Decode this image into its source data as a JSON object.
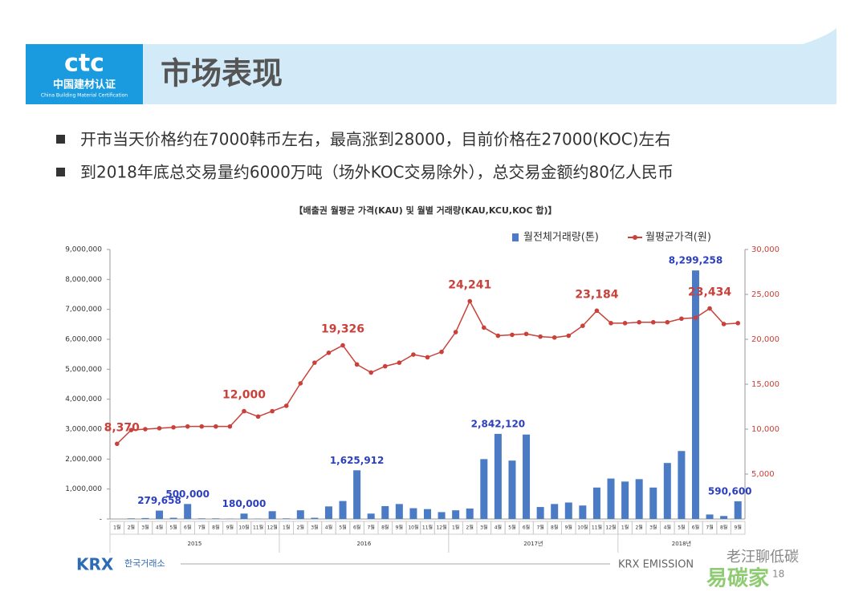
{
  "header": {
    "title": "市场表现",
    "logo": "ctc",
    "logo_cn": "中国建材认证",
    "logo_en": "China Building Material Certification"
  },
  "bullets": [
    "开市当天价格约在7000韩币左右，最高涨到28000，目前价格在27000(KOC)左右",
    "到2018年底总交易量约6000万吨（场外KOC交易除外），总交易金额约80亿人民币"
  ],
  "footer": {
    "brand": "KRX",
    "brand_kr": "한국거래소",
    "right": "KRX EMISSION",
    "page": "18",
    "watermark": "老汪聊低碳",
    "watermark2": "易碳家"
  },
  "chart_data": {
    "type": "bar",
    "title": "【배출권 월평균 가격(KAU) 및 월별 거래량(KAU,KCU,KOC 합)】",
    "categories": [
      "1월",
      "2월",
      "3월",
      "4월",
      "5월",
      "6월",
      "7월",
      "8월",
      "9월",
      "10월",
      "11월",
      "12월",
      "1월",
      "2월",
      "3월",
      "4월",
      "5월",
      "6월",
      "7월",
      "8월",
      "9월",
      "10월",
      "11월",
      "12월",
      "1월",
      "2월",
      "3월",
      "4월",
      "5월",
      "6월",
      "7월",
      "8월",
      "9월",
      "10월",
      "11월",
      "12월",
      "1월",
      "2월",
      "3월",
      "4월",
      "5월",
      "6월",
      "7월",
      "8월",
      "9월"
    ],
    "year_labels": [
      "2015",
      "2016",
      "2017년",
      "2018년"
    ],
    "series": [
      {
        "name": "월전체거래량(톤)",
        "color": "#4a7bc4",
        "values": [
          0,
          20000,
          30000,
          279658,
          40000,
          500000,
          20000,
          20000,
          10000,
          180000,
          10000,
          260000,
          20000,
          290000,
          40000,
          420000,
          600000,
          1625912,
          180000,
          430000,
          500000,
          360000,
          330000,
          230000,
          290000,
          350000,
          2000000,
          2842120,
          1950000,
          2820000,
          400000,
          500000,
          550000,
          450000,
          1050000,
          1350000,
          1250000,
          1330000,
          1050000,
          1870000,
          2270000,
          8299258,
          150000,
          100000,
          590600
        ],
        "value_labels": [
          null,
          null,
          null,
          "279,658",
          null,
          "500,000",
          null,
          null,
          null,
          "180,000",
          null,
          null,
          null,
          null,
          null,
          null,
          null,
          "1,625,912",
          null,
          null,
          null,
          null,
          null,
          null,
          null,
          null,
          null,
          "2,842,120",
          null,
          null,
          null,
          null,
          null,
          null,
          null,
          null,
          null,
          null,
          null,
          null,
          null,
          "8,299,258",
          null,
          null,
          "590,600"
        ]
      },
      {
        "name": "월평균가격(원)",
        "color": "#c9413a",
        "type": "line",
        "axis": "y2",
        "values": [
          8370,
          9900,
          10000,
          10100,
          10200,
          10300,
          10300,
          10300,
          10300,
          12000,
          11400,
          12000,
          12600,
          15100,
          17400,
          18500,
          19326,
          17200,
          16300,
          17000,
          17400,
          18300,
          18000,
          18600,
          20800,
          24241,
          21300,
          20400,
          20500,
          20600,
          20300,
          20200,
          20400,
          21500,
          23184,
          21800,
          21800,
          21900,
          21900,
          21900,
          22300,
          22400,
          23434,
          21700,
          21800
        ],
        "value_labels": [
          "8,370",
          null,
          null,
          null,
          null,
          null,
          null,
          null,
          null,
          "12,000",
          null,
          null,
          null,
          null,
          null,
          null,
          "19,326",
          null,
          null,
          null,
          null,
          null,
          null,
          null,
          null,
          "24,241",
          null,
          null,
          null,
          null,
          null,
          null,
          null,
          null,
          "23,184",
          null,
          null,
          null,
          null,
          null,
          null,
          null,
          "23,434",
          null,
          null
        ]
      }
    ],
    "ylim": [
      0,
      9000000
    ],
    "yticks": [
      {
        "value": 0,
        "label": "-"
      },
      {
        "value": 1000000,
        "label": "1,000,000"
      },
      {
        "value": 2000000,
        "label": "2,000,000"
      },
      {
        "value": 3000000,
        "label": "3,000,000"
      },
      {
        "value": 4000000,
        "label": "4,000,000"
      },
      {
        "value": 5000000,
        "label": "5,000,000"
      },
      {
        "value": 6000000,
        "label": "6,000,000"
      },
      {
        "value": 7000000,
        "label": "7,000,000"
      },
      {
        "value": 8000000,
        "label": "8,000,000"
      },
      {
        "value": 9000000,
        "label": "9,000,000"
      }
    ],
    "y2lim": [
      0,
      30000
    ],
    "y2ticks": [
      {
        "value": 5000,
        "label": "5,000"
      },
      {
        "value": 10000,
        "label": "10,000"
      },
      {
        "value": 15000,
        "label": "15,000"
      },
      {
        "value": 20000,
        "label": "20,000"
      },
      {
        "value": 25000,
        "label": "25,000"
      },
      {
        "value": 30000,
        "label": "30,000"
      }
    ],
    "legend": "top-right",
    "grid": false
  }
}
